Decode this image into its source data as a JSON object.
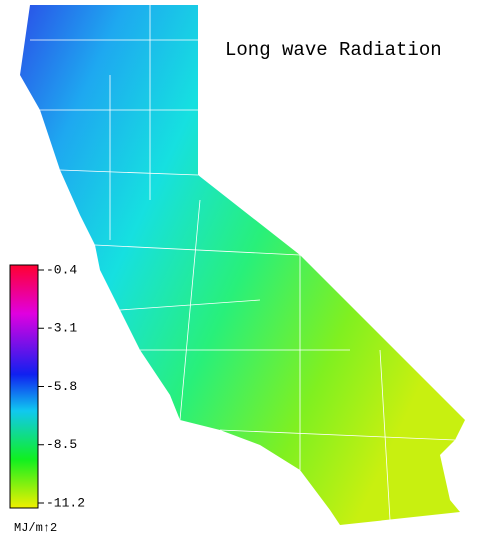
{
  "title": "Long wave Radiation",
  "colorbar": {
    "ticks": [
      -0.4,
      -3.1,
      -5.8,
      -8.5,
      -11.2
    ],
    "unit": "MJ/m↑2"
  }
}
